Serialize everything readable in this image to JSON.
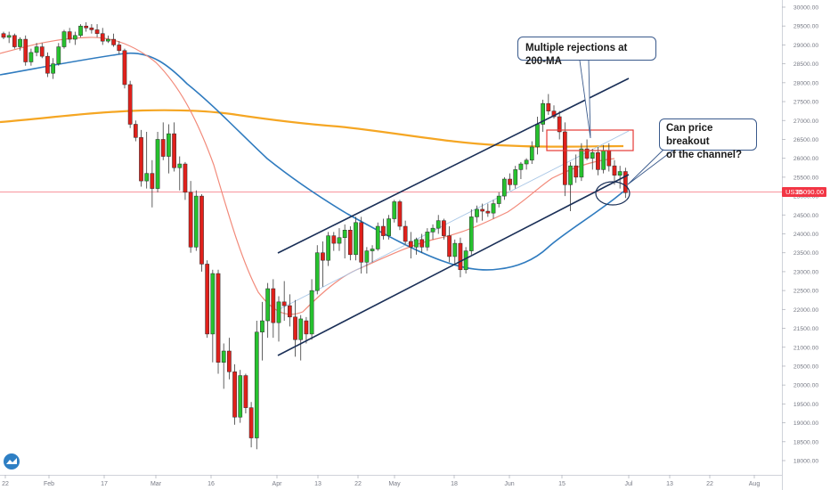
{
  "chart_data": {
    "type": "candlestick",
    "symbol": "US30",
    "last_price": "25090.00",
    "y_ticks": [
      "30000.00",
      "29500.00",
      "29000.00",
      "28500.00",
      "28000.00",
      "27500.00",
      "27000.00",
      "26500.00",
      "26000.00",
      "25500.00",
      "25000.00",
      "24500.00",
      "24000.00",
      "23500.00",
      "23000.00",
      "22500.00",
      "22000.00",
      "21500.00",
      "21000.00",
      "20500.00",
      "20000.00",
      "19500.00",
      "19000.00",
      "18500.00",
      "18000.00"
    ],
    "ylim": [
      17800,
      30100
    ],
    "x_ticks": [
      "22",
      "Feb",
      "17",
      "Mar",
      "16",
      "Apr",
      "13",
      "22",
      "May",
      "18",
      "Jun",
      "15",
      "Jul",
      "13",
      "22",
      "Aug"
    ],
    "callouts": [
      {
        "text": "Multiple rejections at 200-MA"
      },
      {
        "text_line1": "Can price breakout",
        "text_line2": "of the channel?"
      }
    ],
    "candles": [
      [
        29300,
        29350,
        29150,
        29200
      ],
      [
        29200,
        29350,
        29050,
        29250
      ],
      [
        29250,
        29300,
        28900,
        28950
      ],
      [
        28950,
        29200,
        28850,
        29150
      ],
      [
        29150,
        29250,
        28450,
        28550
      ],
      [
        28550,
        28900,
        28450,
        28800
      ],
      [
        28800,
        29050,
        28700,
        28950
      ],
      [
        28950,
        29050,
        28650,
        28700
      ],
      [
        28700,
        28800,
        28150,
        28250
      ],
      [
        28250,
        28650,
        28100,
        28500
      ],
      [
        28500,
        29050,
        28450,
        28950
      ],
      [
        28950,
        29400,
        28900,
        29350
      ],
      [
        29350,
        29450,
        29050,
        29150
      ],
      [
        29150,
        29350,
        29000,
        29250
      ],
      [
        29250,
        29550,
        29200,
        29500
      ],
      [
        29500,
        29600,
        29350,
        29450
      ],
      [
        29450,
        29550,
        29300,
        29400
      ],
      [
        29400,
        29550,
        29200,
        29300
      ],
      [
        29300,
        29450,
        29000,
        29100
      ],
      [
        29100,
        29250,
        29050,
        29150
      ],
      [
        29150,
        29300,
        28950,
        29000
      ],
      [
        29000,
        29100,
        28750,
        28850
      ],
      [
        28850,
        28900,
        27850,
        27950
      ],
      [
        27950,
        28050,
        26800,
        26900
      ],
      [
        26900,
        27000,
        26450,
        26550
      ],
      [
        26550,
        26750,
        25250,
        25400
      ],
      [
        25400,
        26700,
        25200,
        25600
      ],
      [
        25600,
        25950,
        24700,
        25200
      ],
      [
        25200,
        26700,
        25100,
        26500
      ],
      [
        26500,
        26950,
        25950,
        26050
      ],
      [
        26050,
        26900,
        25600,
        26650
      ],
      [
        26650,
        26950,
        25650,
        25750
      ],
      [
        25750,
        26050,
        25150,
        25850
      ],
      [
        25850,
        25900,
        24900,
        25100
      ],
      [
        25100,
        25400,
        23500,
        23650
      ],
      [
        23650,
        25150,
        23550,
        25000
      ],
      [
        25000,
        25050,
        23000,
        23200
      ],
      [
        23200,
        23300,
        21250,
        21350
      ],
      [
        21350,
        23050,
        20600,
        22950
      ],
      [
        22950,
        23050,
        20300,
        20600
      ],
      [
        20600,
        21100,
        19900,
        20900
      ],
      [
        20900,
        21250,
        20150,
        20350
      ],
      [
        20350,
        20550,
        18950,
        19150
      ],
      [
        19150,
        20400,
        19000,
        20250
      ],
      [
        20250,
        20300,
        19250,
        19400
      ],
      [
        19400,
        19550,
        18350,
        18600
      ],
      [
        18600,
        21700,
        18300,
        21400
      ],
      [
        21400,
        22200,
        20650,
        21700
      ],
      [
        21700,
        22700,
        21250,
        22550
      ],
      [
        22550,
        22800,
        21250,
        21650
      ],
      [
        21650,
        22350,
        21150,
        22200
      ],
      [
        22200,
        22750,
        21700,
        22100
      ],
      [
        22100,
        22400,
        21550,
        21800
      ],
      [
        21800,
        22250,
        20750,
        21200
      ],
      [
        21200,
        21850,
        20650,
        21750
      ],
      [
        21700,
        21800,
        21100,
        21350
      ],
      [
        21350,
        22800,
        21200,
        22500
      ],
      [
        22500,
        23700,
        22400,
        23500
      ],
      [
        23500,
        23800,
        22600,
        23300
      ],
      [
        23300,
        24050,
        23150,
        23950
      ],
      [
        23950,
        24050,
        23550,
        23750
      ],
      [
        23750,
        24150,
        23550,
        23900
      ],
      [
        23900,
        24250,
        23350,
        24100
      ],
      [
        24100,
        24200,
        23300,
        23450
      ],
      [
        23450,
        24450,
        23300,
        24300
      ],
      [
        24300,
        24450,
        22950,
        23250
      ],
      [
        23250,
        23650,
        22950,
        23550
      ],
      [
        23550,
        23700,
        23250,
        23600
      ],
      [
        23600,
        24300,
        23550,
        24200
      ],
      [
        24200,
        24400,
        23850,
        23950
      ],
      [
        23950,
        24500,
        23850,
        24400
      ],
      [
        24400,
        24900,
        24300,
        24850
      ],
      [
        24850,
        24900,
        24100,
        24200
      ],
      [
        24200,
        24350,
        23700,
        23800
      ],
      [
        23800,
        24050,
        23350,
        23650
      ],
      [
        23650,
        23900,
        23450,
        23850
      ],
      [
        23850,
        24000,
        23500,
        23650
      ],
      [
        23650,
        24150,
        23550,
        24050
      ],
      [
        24050,
        24250,
        23850,
        24150
      ],
      [
        24150,
        24500,
        24000,
        24350
      ],
      [
        24350,
        24400,
        23850,
        23950
      ],
      [
        23950,
        24200,
        23250,
        23400
      ],
      [
        23400,
        23850,
        23200,
        23750
      ],
      [
        23750,
        23900,
        22850,
        23050
      ],
      [
        23050,
        23650,
        22950,
        23550
      ],
      [
        23550,
        24650,
        23450,
        24450
      ],
      [
        24450,
        24750,
        24300,
        24650
      ],
      [
        24650,
        24800,
        24350,
        24600
      ],
      [
        24600,
        24800,
        24450,
        24550
      ],
      [
        24550,
        24900,
        24400,
        24800
      ],
      [
        24800,
        25100,
        24700,
        25000
      ],
      [
        25000,
        25500,
        24900,
        25450
      ],
      [
        25450,
        25600,
        25150,
        25300
      ],
      [
        25300,
        25800,
        25200,
        25700
      ],
      [
        25700,
        25900,
        25450,
        25850
      ],
      [
        25850,
        26000,
        25700,
        25950
      ],
      [
        25950,
        26450,
        25850,
        26300
      ],
      [
        26300,
        27100,
        26100,
        26900
      ],
      [
        26900,
        27550,
        26700,
        27450
      ],
      [
        27450,
        27700,
        27150,
        27250
      ],
      [
        27250,
        27400,
        27050,
        27100
      ],
      [
        27100,
        27250,
        26500,
        26700
      ],
      [
        26700,
        26950,
        25000,
        25300
      ],
      [
        25300,
        25900,
        24600,
        25800
      ],
      [
        25800,
        26100,
        25350,
        25500
      ],
      [
        25500,
        26400,
        25400,
        26250
      ],
      [
        26250,
        26500,
        25950,
        26000
      ],
      [
        26000,
        26250,
        25700,
        26150
      ],
      [
        26150,
        26300,
        25550,
        25700
      ],
      [
        25700,
        26350,
        25600,
        26200
      ],
      [
        26200,
        26400,
        25650,
        25800
      ],
      [
        25800,
        25950,
        25300,
        25550
      ],
      [
        25550,
        25800,
        25200,
        25650
      ],
      [
        25650,
        25750,
        24950,
        25090
      ]
    ]
  }
}
